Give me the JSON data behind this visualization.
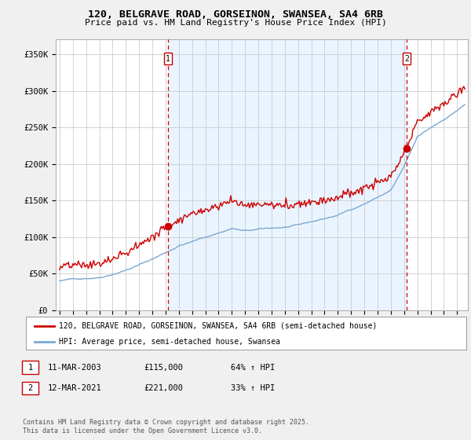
{
  "title": "120, BELGRAVE ROAD, GORSEINON, SWANSEA, SA4 6RB",
  "subtitle": "Price paid vs. HM Land Registry's House Price Index (HPI)",
  "legend_line1": "120, BELGRAVE ROAD, GORSEINON, SWANSEA, SA4 6RB (semi-detached house)",
  "legend_line2": "HPI: Average price, semi-detached house, Swansea",
  "footer": "Contains HM Land Registry data © Crown copyright and database right 2025.\nThis data is licensed under the Open Government Licence v3.0.",
  "sale1_date": "11-MAR-2003",
  "sale1_price": "£115,000",
  "sale1_hpi": "64% ↑ HPI",
  "sale2_date": "12-MAR-2021",
  "sale2_price": "£221,000",
  "sale2_hpi": "33% ↑ HPI",
  "red_color": "#cc0000",
  "blue_color": "#7aa8d2",
  "shade_color": "#ddeeff",
  "dashed_color": "#cc0000",
  "background_color": "#f0f0f0",
  "plot_bg_color": "#ffffff",
  "grid_color": "#cccccc",
  "ylim": [
    0,
    370000
  ],
  "yticks": [
    0,
    50000,
    100000,
    150000,
    200000,
    250000,
    300000,
    350000
  ],
  "ytick_labels": [
    "£0",
    "£50K",
    "£100K",
    "£150K",
    "£200K",
    "£250K",
    "£300K",
    "£350K"
  ],
  "sale1_x": 2003.19,
  "sale2_x": 2021.19,
  "sale1_y": 115000,
  "sale2_y": 221000,
  "xlim_left": 1994.7,
  "xlim_right": 2025.8
}
